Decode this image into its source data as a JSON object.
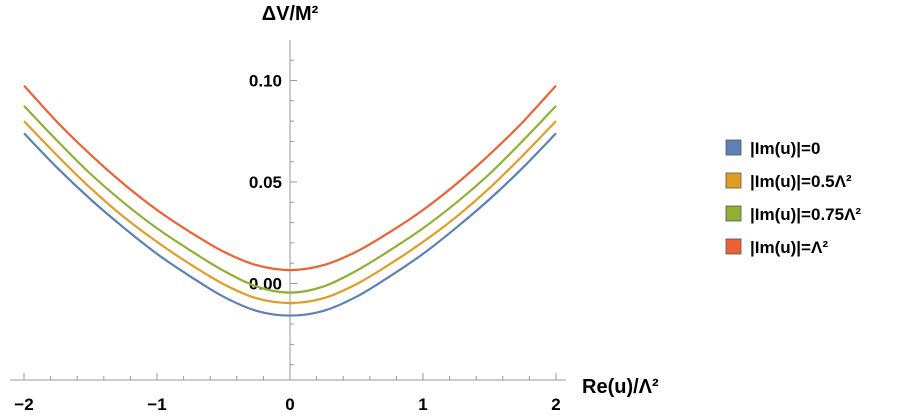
{
  "chart_data": {
    "type": "line",
    "ylabel": "ΔV/M²",
    "xlabel": "Re(u)/Λ²",
    "xlim": [
      -2,
      2
    ],
    "ylim": [
      -0.06,
      0.12
    ],
    "x_ticks": [
      {
        "value": -2,
        "label": "−2"
      },
      {
        "value": -1,
        "label": "−1"
      },
      {
        "value": 0,
        "label": "0"
      },
      {
        "value": 1,
        "label": "1"
      },
      {
        "value": 2,
        "label": "2"
      }
    ],
    "y_ticks": [
      {
        "value": 0.0,
        "label": "0.00"
      },
      {
        "value": 0.05,
        "label": "0.05"
      },
      {
        "value": 0.1,
        "label": "0.10"
      }
    ],
    "grid": false,
    "legend_position": "right",
    "x": [
      -2,
      -1.75,
      -1.5,
      -1.25,
      -1,
      -0.75,
      -0.5,
      -0.25,
      0,
      0.25,
      0.5,
      0.75,
      1,
      1.25,
      1.5,
      1.75,
      2
    ],
    "series": [
      {
        "name": "|Im(u)|=0",
        "color": "#5E81B5",
        "values": [
          0.074,
          0.057,
          0.0415,
          0.0275,
          0.0146,
          0.0035,
          -0.0065,
          -0.0135,
          -0.0158,
          -0.0135,
          -0.0065,
          0.0035,
          0.0146,
          0.0275,
          0.0415,
          0.057,
          0.074
        ]
      },
      {
        "name": "|Im(u)|=0.5Λ²",
        "color": "#E19C24",
        "values": [
          0.08,
          0.063,
          0.047,
          0.0328,
          0.0205,
          0.0095,
          -0.0003,
          -0.0073,
          -0.0096,
          -0.0073,
          -0.0003,
          0.0095,
          0.0205,
          0.0328,
          0.047,
          0.063,
          0.08
        ]
      },
      {
        "name": "|Im(u)|=0.75Λ²",
        "color": "#8FB032",
        "values": [
          0.0875,
          0.0703,
          0.054,
          0.0398,
          0.0272,
          0.0163,
          0.0063,
          -0.0015,
          -0.0045,
          -0.0015,
          0.0063,
          0.0163,
          0.0272,
          0.0398,
          0.054,
          0.0703,
          0.0875
        ]
      },
      {
        "name": "|Im(u)|=Λ²",
        "color": "#EB6235",
        "values": [
          0.0975,
          0.0795,
          0.0635,
          0.049,
          0.0362,
          0.0253,
          0.0157,
          0.009,
          0.0066,
          0.009,
          0.0157,
          0.0253,
          0.0362,
          0.049,
          0.0635,
          0.0795,
          0.0975
        ]
      }
    ]
  }
}
